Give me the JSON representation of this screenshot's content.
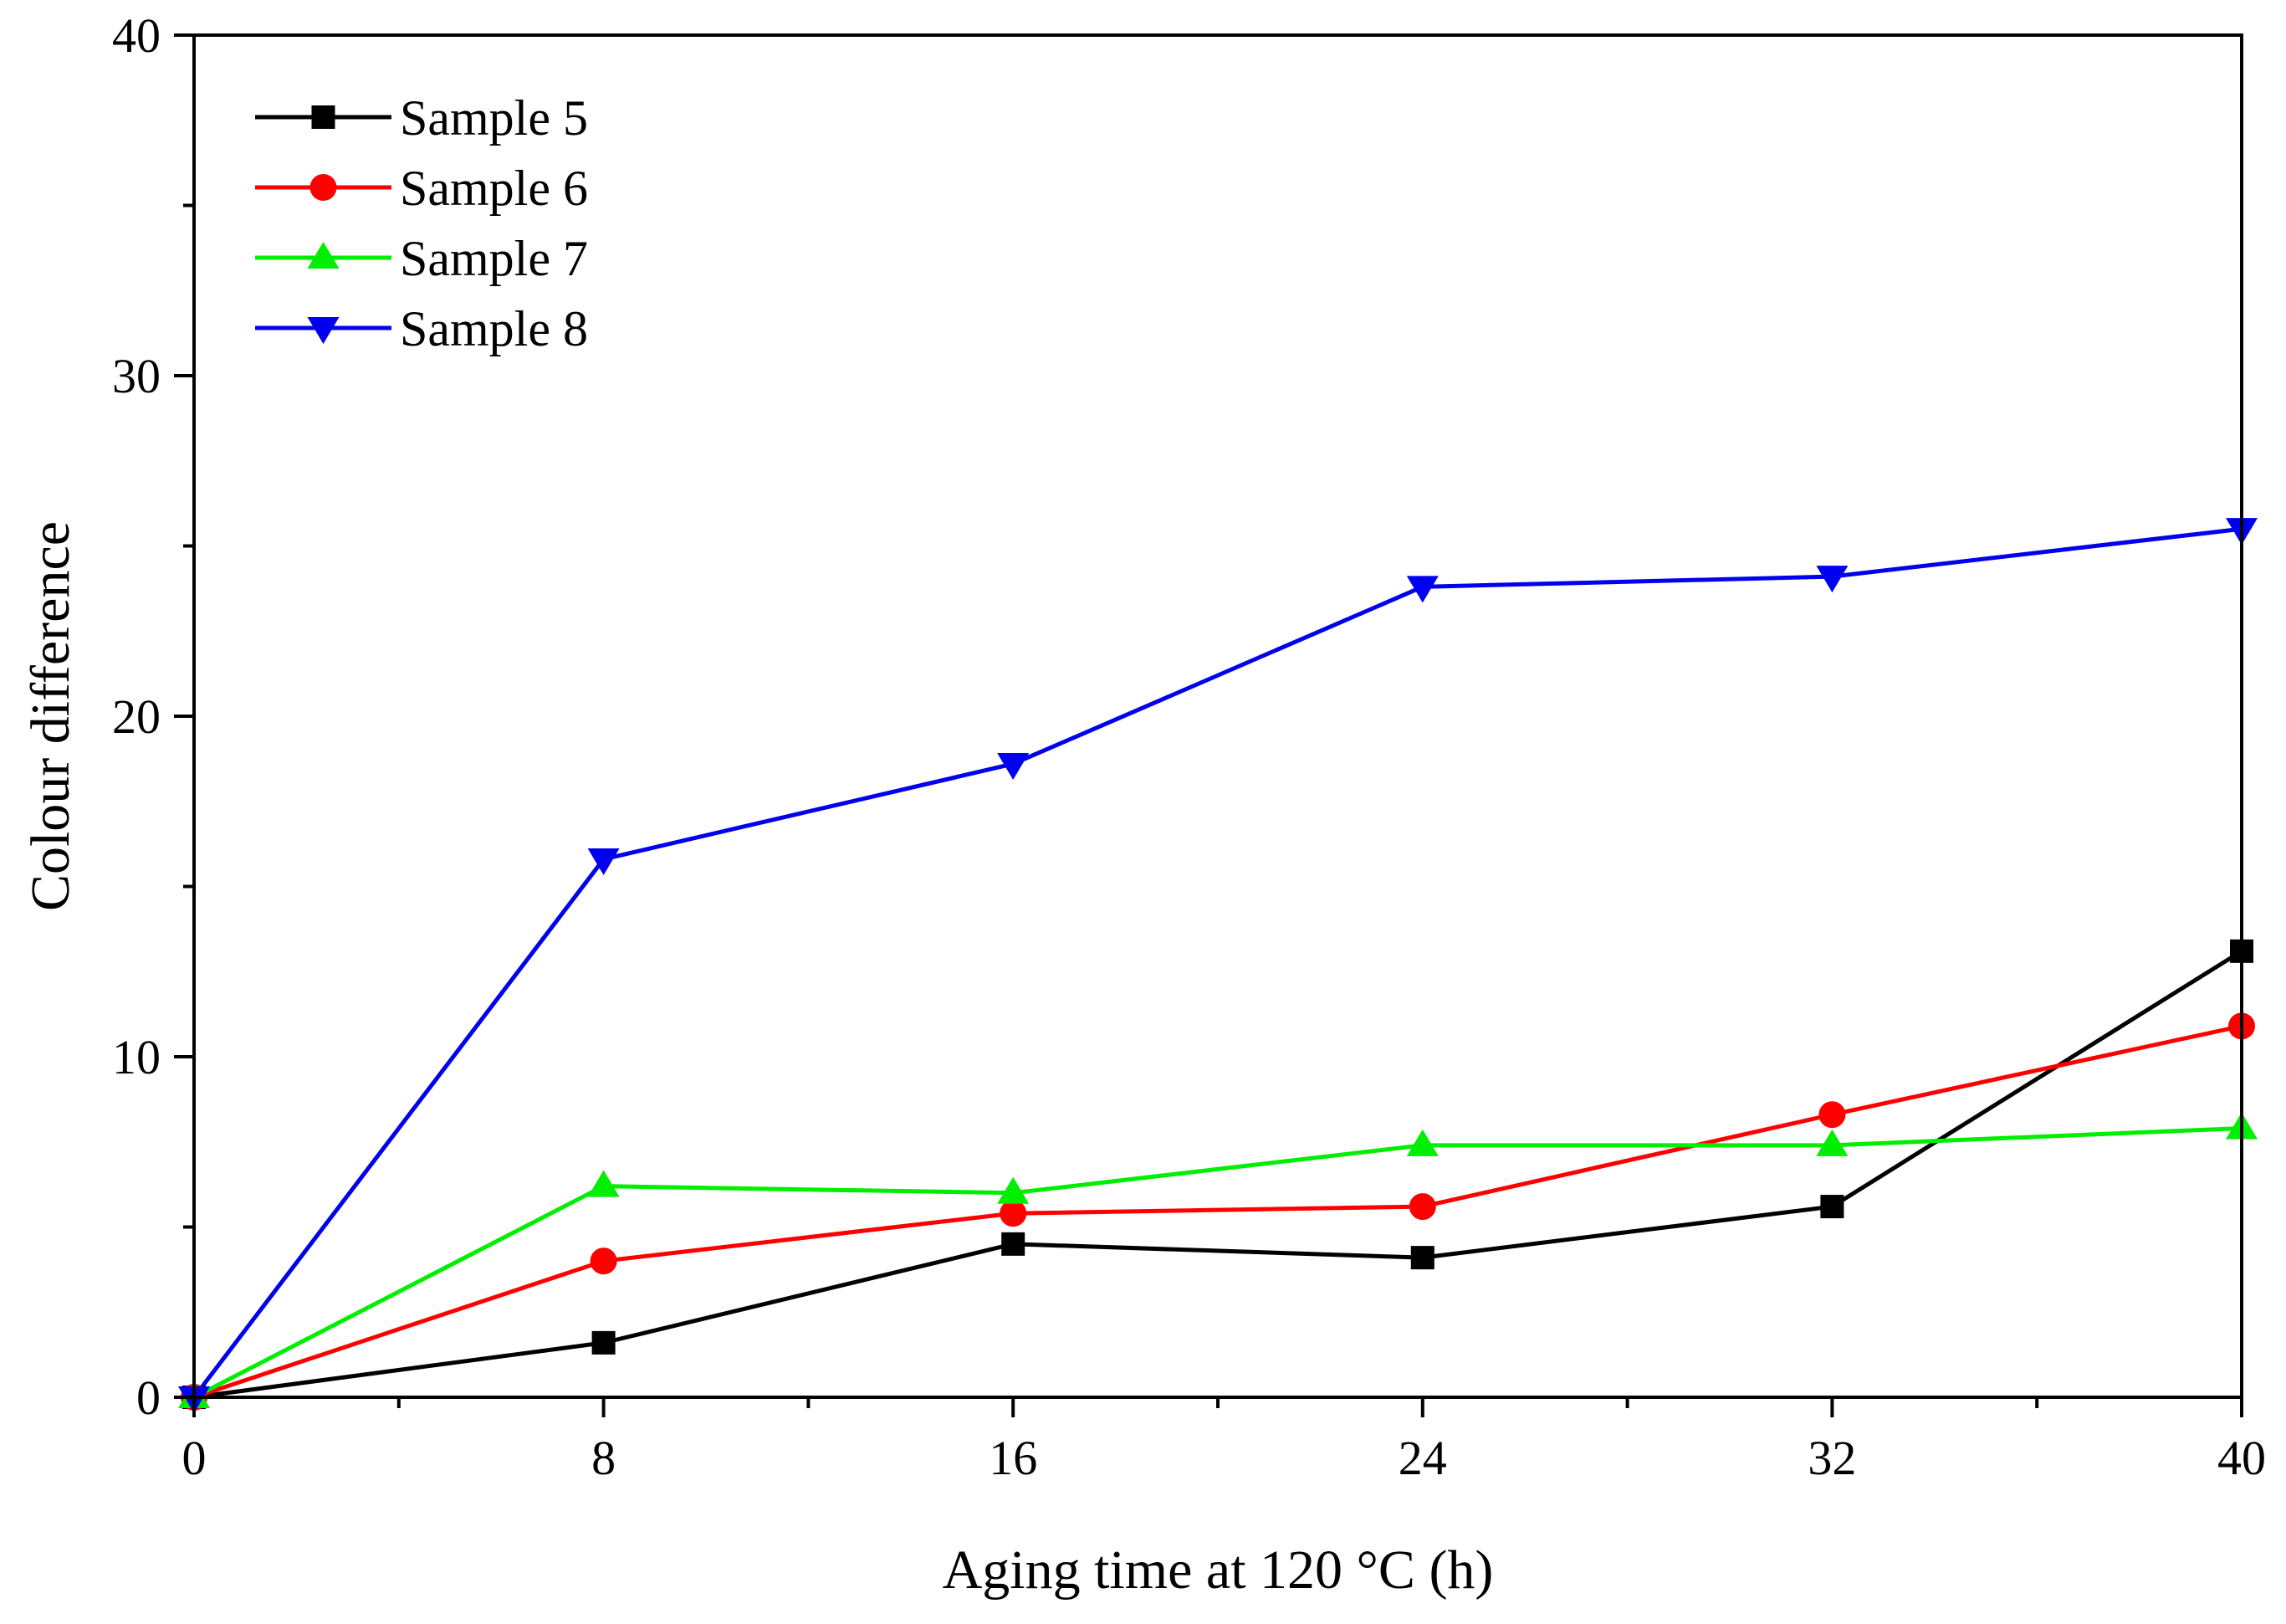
{
  "chart_data": {
    "type": "line",
    "title": "",
    "xlabel": "Aging time at 120 °C (h)",
    "ylabel": "Colour difference",
    "xlim": [
      0,
      40
    ],
    "ylim": [
      0,
      40
    ],
    "x_major_ticks": [
      0,
      8,
      16,
      24,
      32,
      40
    ],
    "x_major_tick_labels": [
      "0",
      "8",
      "16",
      "24",
      "32",
      "40"
    ],
    "x_minor_ticks": [
      4,
      12,
      20,
      28,
      36
    ],
    "y_major_ticks": [
      0,
      10,
      20,
      30,
      40
    ],
    "y_major_tick_labels": [
      "0",
      "10",
      "20",
      "30",
      "40"
    ],
    "y_minor_ticks": [
      5,
      15,
      25,
      35
    ],
    "grid": false,
    "legend_position": "top-left",
    "x": [
      0,
      8,
      16,
      24,
      32,
      40
    ],
    "series": [
      {
        "name": "Sample 5",
        "color": "#000000",
        "marker": "square",
        "values": [
          0,
          1.6,
          4.5,
          4.1,
          5.6,
          13.1
        ]
      },
      {
        "name": "Sample 6",
        "color": "#ff0000",
        "marker": "circle",
        "values": [
          0,
          4.0,
          5.4,
          5.6,
          8.3,
          10.9
        ]
      },
      {
        "name": "Sample 7",
        "color": "#00ee00",
        "marker": "triangle-up",
        "values": [
          0,
          6.2,
          6.0,
          7.4,
          7.4,
          7.9
        ]
      },
      {
        "name": "Sample 8",
        "color": "#0000ee",
        "marker": "triangle-down",
        "values": [
          0,
          15.8,
          18.6,
          23.8,
          24.1,
          25.5
        ]
      }
    ]
  }
}
